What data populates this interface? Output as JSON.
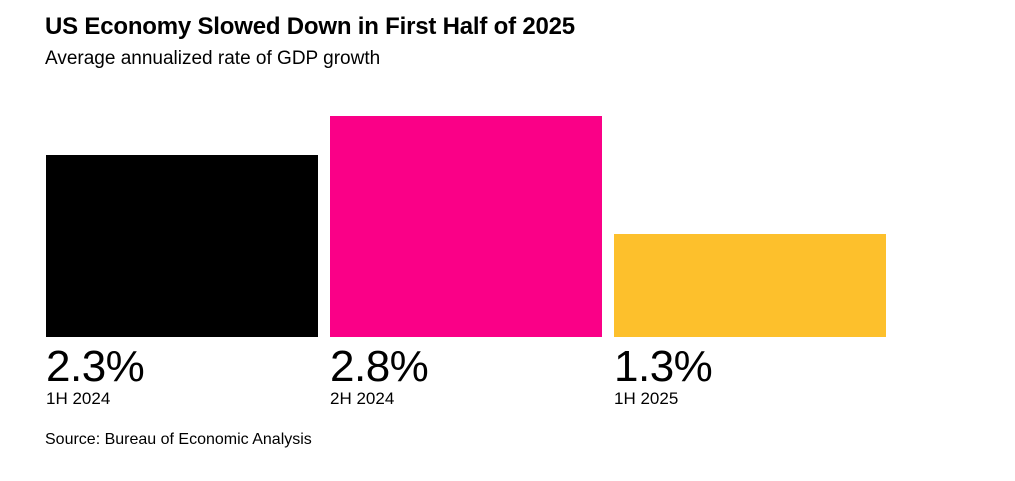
{
  "chart_data": {
    "type": "bar",
    "title": "US Economy Slowed Down in First Half of 2025",
    "subtitle": "Average annualized rate of GDP growth",
    "categories": [
      "1H 2024",
      "2H 2024",
      "1H 2025"
    ],
    "values": [
      2.3,
      2.8,
      1.3
    ],
    "value_labels": [
      "2.3%",
      "2.8%",
      "1.3%"
    ],
    "bar_colors": [
      "#000000",
      "#FA0087",
      "#FDC02C"
    ],
    "unit": "%",
    "xlabel": "",
    "ylabel": "",
    "ylim": [
      0,
      2.8
    ],
    "grid": false,
    "legend": "none",
    "value_label_position": "below bar, left-aligned with bar"
  },
  "footer": {
    "source": "Source: Bureau of Economic Analysis"
  }
}
